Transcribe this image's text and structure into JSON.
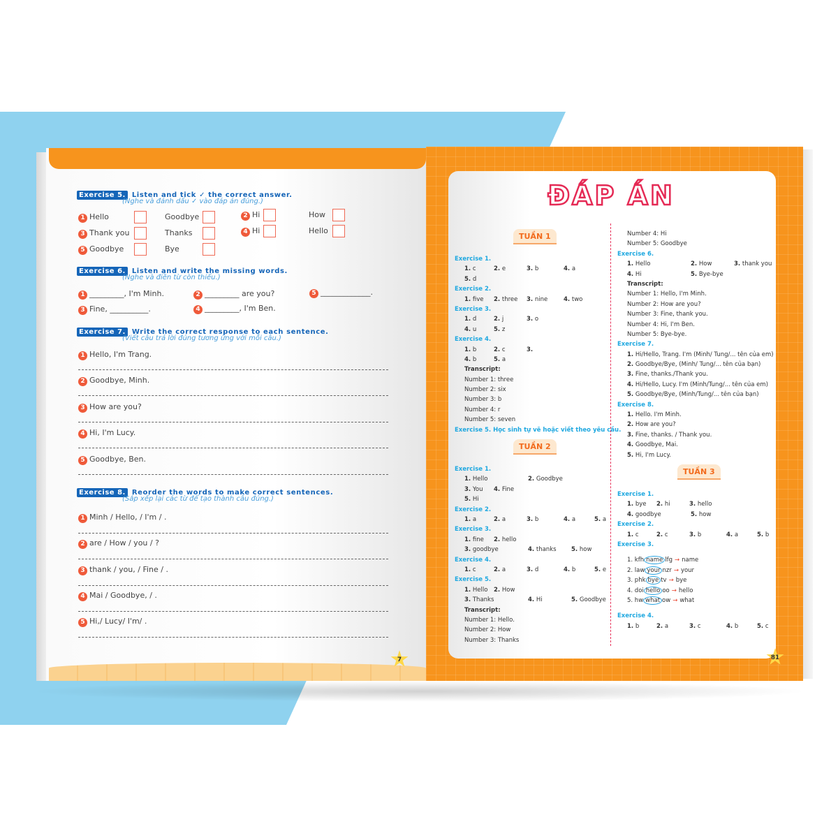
{
  "left_page": {
    "page_number": "7",
    "ex5": {
      "label": "Exercise 5.",
      "title": "Listen and tick ✓ the correct answer.",
      "subtitle": "(Nghe và đánh dấu ✓ vào đáp án đúng.)",
      "items": [
        {
          "n": "1",
          "a": "Hello",
          "b": "Goodbye"
        },
        {
          "n": "2",
          "a": "Hi",
          "b": "How"
        },
        {
          "n": "3",
          "a": "Thank you",
          "b": "Thanks"
        },
        {
          "n": "4",
          "a": "Hi",
          "b": "Hello"
        },
        {
          "n": "5",
          "a": "Goodbye",
          "b": "Bye"
        }
      ]
    },
    "ex6": {
      "label": "Exercise 6.",
      "title": "Listen and write the missing words.",
      "subtitle": "(Nghe và điền từ còn thiếu.)",
      "items": [
        {
          "n": "1",
          "text": "_________, I'm Minh."
        },
        {
          "n": "2",
          "text": "_________ are you?"
        },
        {
          "n": "5",
          "text": "_____________."
        },
        {
          "n": "3",
          "text": "Fine, __________."
        },
        {
          "n": "4",
          "text": "_________, I'm Ben."
        }
      ]
    },
    "ex7": {
      "label": "Exercise 7.",
      "title": "Write the correct response to each sentence.",
      "subtitle": "(Viết câu trả lời đúng tương ứng với mỗi câu.)",
      "items": [
        {
          "n": "1",
          "text": "Hello, I'm Trang."
        },
        {
          "n": "2",
          "text": "Goodbye, Minh."
        },
        {
          "n": "3",
          "text": "How are you?"
        },
        {
          "n": "4",
          "text": "Hi, I'm Lucy."
        },
        {
          "n": "5",
          "text": "Goodbye, Ben."
        }
      ]
    },
    "ex8": {
      "label": "Exercise 8.",
      "title": "Reorder the words to make correct sentences.",
      "subtitle": "(Sắp xếp lại các từ để tạo thành câu đúng.)",
      "items": [
        {
          "n": "1",
          "text": "Minh / Hello, / I'm / ."
        },
        {
          "n": "2",
          "text": "are / How / you / ?"
        },
        {
          "n": "3",
          "text": "thank / you, / Fine / ."
        },
        {
          "n": "4",
          "text": "Mai / Goodbye, / ."
        },
        {
          "n": "5",
          "text": "Hi,/ Lucy/ I'm/ ."
        }
      ]
    }
  },
  "right_page": {
    "title": "ĐÁP ÁN",
    "page_number": "81",
    "col1": [
      {
        "type": "week",
        "text": "TUẦN 1"
      },
      {
        "type": "ex",
        "text": "Exercise 1."
      },
      {
        "type": "ans",
        "items": [
          "1. c",
          "2. e",
          "3. b",
          "4. a"
        ]
      },
      {
        "type": "ans",
        "items": [
          "5. d"
        ]
      },
      {
        "type": "ex",
        "text": "Exercise 2."
      },
      {
        "type": "ans",
        "items": [
          "1. five",
          "2. three",
          "3. nine",
          "4. two"
        ]
      },
      {
        "type": "ex",
        "text": "Exercise 3."
      },
      {
        "type": "ans",
        "items": [
          "1. d",
          "2. j",
          "3. o"
        ]
      },
      {
        "type": "ans",
        "items": [
          "4. u",
          "5. z"
        ]
      },
      {
        "type": "ex",
        "text": "Exercise 4."
      },
      {
        "type": "ans",
        "items": [
          "1. b",
          "2. c",
          "3."
        ]
      },
      {
        "type": "ans",
        "items": [
          "4. b",
          "5. a"
        ]
      },
      {
        "type": "bold",
        "text": "Transcript:"
      },
      {
        "type": "plain",
        "text": "Number 1: three"
      },
      {
        "type": "plain",
        "text": "Number 2: six"
      },
      {
        "type": "plain",
        "text": "Number 3: b"
      },
      {
        "type": "plain",
        "text": "Number 4: r"
      },
      {
        "type": "plain",
        "text": "Number 5: seven"
      },
      {
        "type": "ex",
        "text": "Exercise 5. Học sinh tự vẽ hoặc viết theo yêu cầu."
      },
      {
        "type": "week",
        "text": "TUẦN 2"
      },
      {
        "type": "ex",
        "text": "Exercise 1."
      },
      {
        "type": "ans",
        "items": [
          "1. Hello",
          "2. Goodbye"
        ]
      },
      {
        "type": "ans",
        "items": [
          "3. You",
          "4. Fine"
        ]
      },
      {
        "type": "ans",
        "items": [
          "5. Hi"
        ]
      },
      {
        "type": "ex",
        "text": "Exercise 2."
      },
      {
        "type": "ans",
        "items": [
          "1. a",
          "2. a",
          "3. b",
          "4. a",
          "5. a"
        ]
      },
      {
        "type": "ex",
        "text": "Exercise 3."
      },
      {
        "type": "ans",
        "items": [
          "1. fine",
          "2. hello"
        ]
      },
      {
        "type": "ans",
        "items": [
          "3. goodbye",
          "4. thanks",
          "5. how"
        ]
      },
      {
        "type": "ex",
        "text": "Exercise 4."
      },
      {
        "type": "ans",
        "items": [
          "1. c",
          "2. a",
          "3. d",
          "4. b",
          "5. e"
        ]
      },
      {
        "type": "ex",
        "text": "Exercise 5."
      },
      {
        "type": "ans",
        "items": [
          "1. Hello",
          "2. How"
        ]
      },
      {
        "type": "ans",
        "items": [
          "3. Thanks",
          "4. Hi",
          "5. Goodbye"
        ]
      },
      {
        "type": "bold",
        "text": "Transcript:"
      },
      {
        "type": "plain",
        "text": "Number 1: Hello."
      },
      {
        "type": "plain",
        "text": "Number 2: How"
      },
      {
        "type": "plain",
        "text": "Number 3: Thanks"
      }
    ],
    "col2": [
      {
        "type": "plain",
        "text": "Number 4: Hi"
      },
      {
        "type": "plain",
        "text": "Number 5: Goodbye"
      },
      {
        "type": "ex",
        "text": "Exercise 6."
      },
      {
        "type": "ans",
        "items": [
          "1. Hello",
          "2. How",
          "3. thank you"
        ]
      },
      {
        "type": "ans",
        "items": [
          "4. Hi",
          "5. Bye-bye"
        ]
      },
      {
        "type": "bold",
        "text": "Transcript:"
      },
      {
        "type": "plain",
        "text": "Number 1: Hello, I'm Minh."
      },
      {
        "type": "plain",
        "text": "Number 2: How are you?"
      },
      {
        "type": "plain",
        "text": "Number 3: Fine, thank you."
      },
      {
        "type": "plain",
        "text": "Number 4: Hi, I'm Ben."
      },
      {
        "type": "plain",
        "text": "Number 5: Bye-bye."
      },
      {
        "type": "ex",
        "text": "Exercise 7."
      },
      {
        "type": "plain",
        "text": "1. Hi/Hello, Trang. I'm (Minh/ Tung/... tên của em)"
      },
      {
        "type": "plain",
        "text": "2. Goodbye/Bye, (Minh/ Tung/... tên của bạn)"
      },
      {
        "type": "plain",
        "text": "3. Fine, thanks./Thank you."
      },
      {
        "type": "plain",
        "text": "4. Hi/Hello, Lucy. I'm (Minh/Tung/... tên của em)"
      },
      {
        "type": "plain",
        "text": "5. Goodbye/Bye, (Minh/Tung/... tên của bạn)"
      },
      {
        "type": "ex",
        "text": "Exercise 8."
      },
      {
        "type": "plain",
        "text": "1. Hello. I'm Minh."
      },
      {
        "type": "plain",
        "text": "2. How are you?"
      },
      {
        "type": "plain",
        "text": "3. Fine, thanks. / Thank you."
      },
      {
        "type": "plain",
        "text": "4. Goodbye, Mai."
      },
      {
        "type": "plain",
        "text": "5. Hi, I'm Lucy."
      },
      {
        "type": "week",
        "text": "TUẦN 3"
      },
      {
        "type": "ex",
        "text": "Exercise 1."
      },
      {
        "type": "ans",
        "items": [
          "1. bye",
          "2. hi",
          "3. hello"
        ]
      },
      {
        "type": "ans",
        "items": [
          "4. goodbye",
          "5. how"
        ]
      },
      {
        "type": "ex",
        "text": "Exercise 2."
      },
      {
        "type": "ans",
        "items": [
          "1. c",
          "2. c",
          "3. b",
          "4. a",
          "5. b"
        ]
      },
      {
        "type": "ex",
        "text": "Exercise 3."
      },
      {
        "type": "spacer"
      },
      {
        "type": "find",
        "pre": "1. kfh",
        "word": "name",
        "post": "lfg",
        "answer": "name"
      },
      {
        "type": "find",
        "pre": "2. law",
        "word": "your",
        "post": "nzr",
        "answer": "your"
      },
      {
        "type": "find",
        "pre": "3. phk",
        "word": "bye",
        "post": "tv",
        "answer": "bye"
      },
      {
        "type": "find",
        "pre": "4. doi",
        "word": "hello",
        "post": "oo",
        "answer": "hello"
      },
      {
        "type": "find",
        "pre": "5. hw",
        "word": "what",
        "post": "ow",
        "answer": "what"
      },
      {
        "type": "spacer"
      },
      {
        "type": "ex",
        "text": "Exercise 4."
      },
      {
        "type": "ans",
        "items": [
          "1. b",
          "2. a",
          "3. c",
          "4. b",
          "5. c"
        ]
      }
    ],
    "arrow": "→"
  },
  "colors": {
    "orange": "#f7941d",
    "blue_label": "#1565b8",
    "number_circle": "#ef5a3a",
    "title_red": "#e52a55",
    "answer_heading": "#1fa8e0"
  }
}
